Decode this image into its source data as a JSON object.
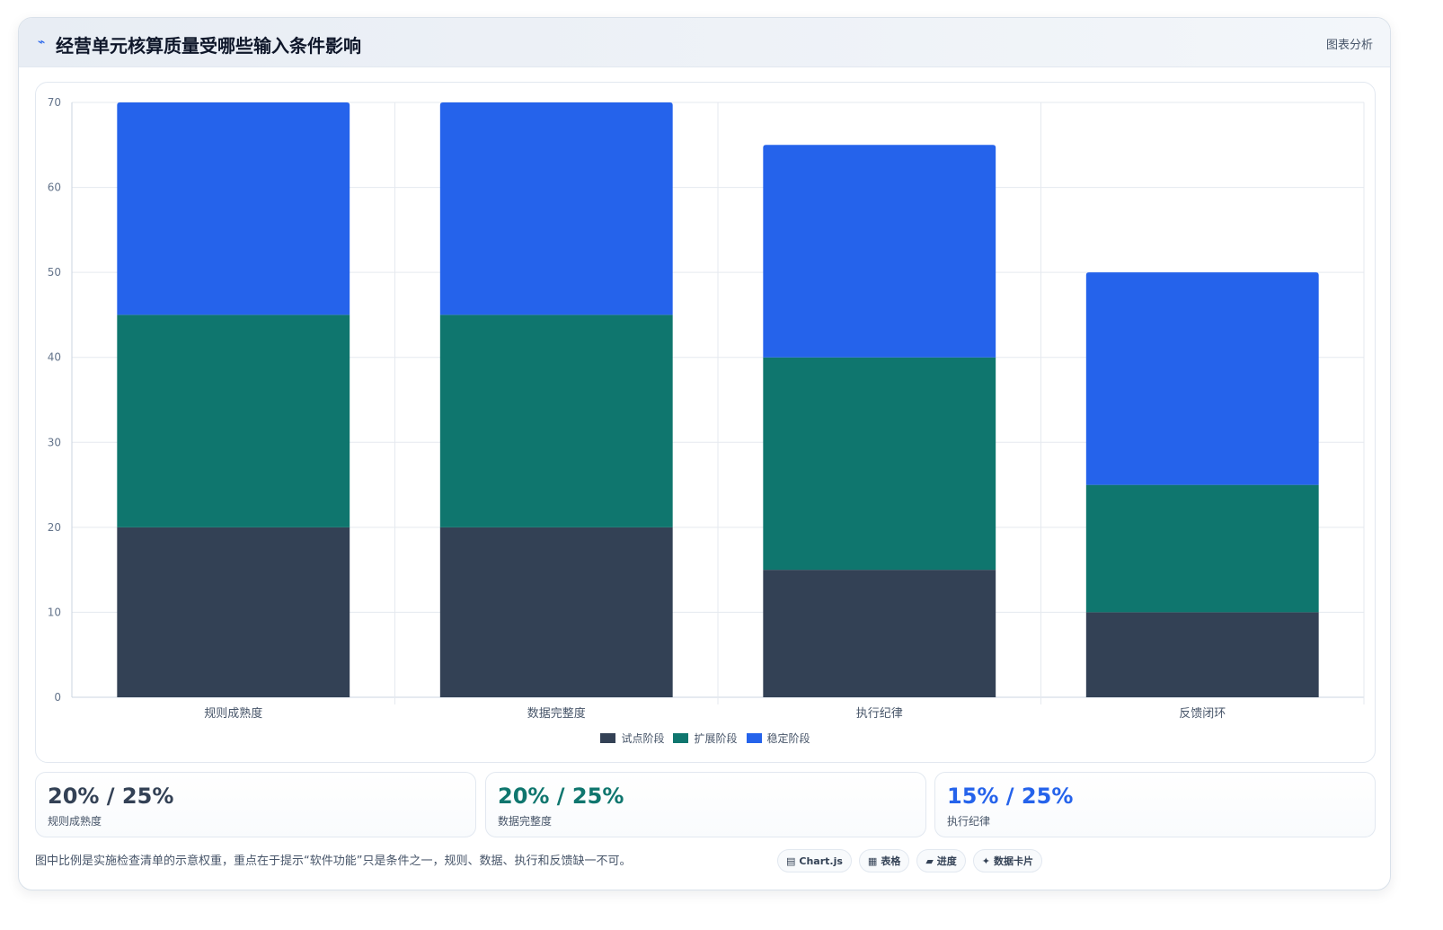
{
  "header": {
    "icon": "trend-line-icon",
    "icon_glyph": "⌁",
    "title": "经营单元核算质量受哪些输入条件影响",
    "meta": "图表分析"
  },
  "chart_data": {
    "type": "bar",
    "stacked": true,
    "categories": [
      "规则成熟度",
      "数据完整度",
      "执行纪律",
      "反馈闭环"
    ],
    "series": [
      {
        "name": "试点阶段",
        "color": "#334155",
        "values": [
          20,
          20,
          15,
          10
        ]
      },
      {
        "name": "扩展阶段",
        "color": "#0f766e",
        "values": [
          25,
          25,
          25,
          15
        ]
      },
      {
        "name": "稳定阶段",
        "color": "#2563eb",
        "values": [
          25,
          25,
          25,
          25
        ]
      }
    ],
    "ylim": [
      0,
      70
    ],
    "yticks": [
      0,
      10,
      20,
      30,
      40,
      50,
      60,
      70
    ],
    "grid": true,
    "legend_position": "bottom",
    "title": "",
    "xlabel": "",
    "ylabel": ""
  },
  "stats": [
    {
      "value": "20% / 25%",
      "label": "规则成熟度",
      "color": "#334155"
    },
    {
      "value": "20% / 25%",
      "label": "数据完整度",
      "color": "#0f766e"
    },
    {
      "value": "15% / 25%",
      "label": "执行纪律",
      "color": "#2563eb"
    }
  ],
  "footer": {
    "note": "图中比例是实施检查清单的示意权重，重点在于提示“软件功能”只是条件之一，规则、数据、执行和反馈缺一不可。",
    "tags": [
      {
        "icon": "grid-icon",
        "glyph": "▤",
        "label": "Chart.js"
      },
      {
        "icon": "table-icon",
        "glyph": "▦",
        "label": "表格"
      },
      {
        "icon": "progress-icon",
        "glyph": "▰",
        "label": "进度"
      },
      {
        "icon": "sparkle-icon",
        "glyph": "✦",
        "label": "数据卡片"
      }
    ]
  }
}
